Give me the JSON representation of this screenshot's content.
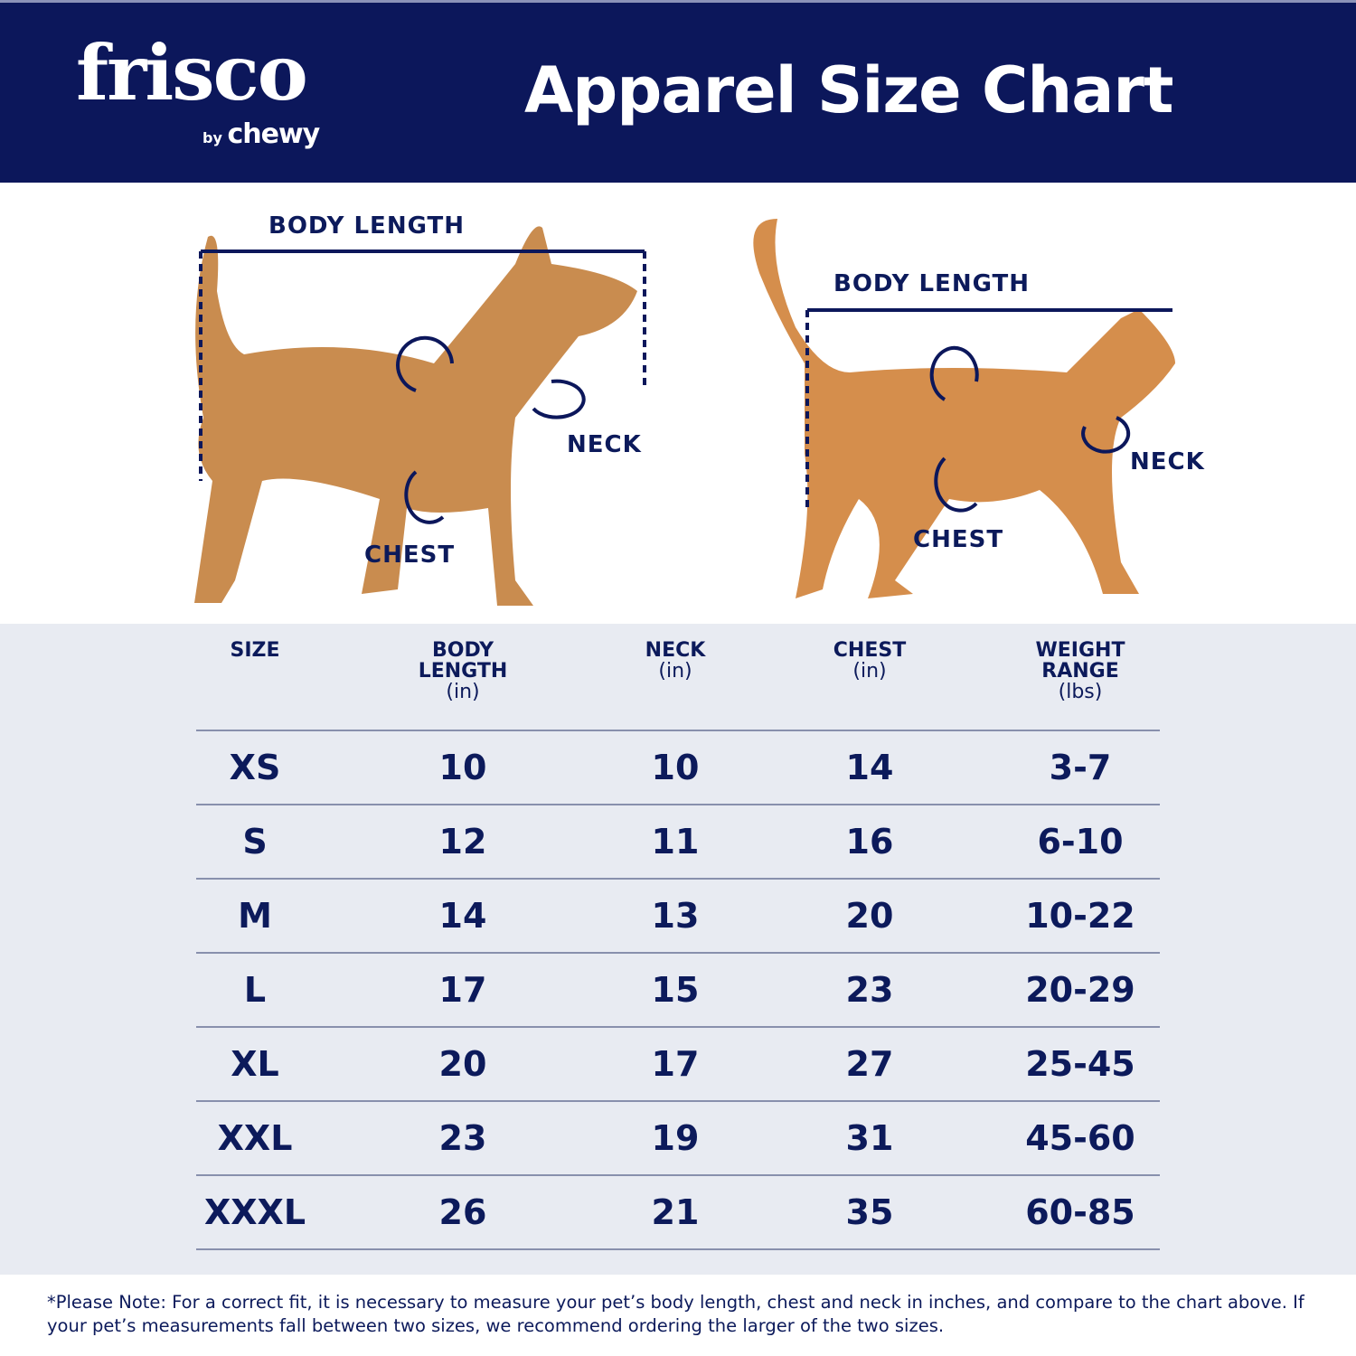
{
  "header": {
    "logo_text": "frisco",
    "logo_sub_by": "by",
    "logo_sub_brand": "chewy",
    "title": "Apparel Size Chart"
  },
  "colors": {
    "navy": "#0c175b",
    "table_bg": "#e8ebf2"
  },
  "dog": {
    "body_length": "BODY LENGTH",
    "neck": "NECK",
    "chest": "CHEST"
  },
  "cat": {
    "body_length": "BODY LENGTH",
    "neck": "NECK",
    "chest": "CHEST"
  },
  "table": {
    "headers": [
      {
        "title": "SIZE",
        "unit": ""
      },
      {
        "title": "BODY LENGTH",
        "unit": "(in)"
      },
      {
        "title": "NECK",
        "unit": "(in)"
      },
      {
        "title": "CHEST",
        "unit": "(in)"
      },
      {
        "title": "WEIGHT RANGE",
        "unit": "(lbs)"
      }
    ],
    "rows": [
      [
        "XS",
        "10",
        "10",
        "14",
        "3-7"
      ],
      [
        "S",
        "12",
        "11",
        "16",
        "6-10"
      ],
      [
        "M",
        "14",
        "13",
        "20",
        "10-22"
      ],
      [
        "L",
        "17",
        "15",
        "23",
        "20-29"
      ],
      [
        "XL",
        "20",
        "17",
        "27",
        "25-45"
      ],
      [
        "XXL",
        "23",
        "19",
        "31",
        "45-60"
      ],
      [
        "XXXL",
        "26",
        "21",
        "35",
        "60-85"
      ]
    ]
  },
  "note": "*Please Note: For a correct fit, it is necessary to measure your pet’s body length, chest and neck in inches, and compare to the chart above. If your pet’s measurements fall between two sizes, we recommend ordering the larger of the two sizes."
}
